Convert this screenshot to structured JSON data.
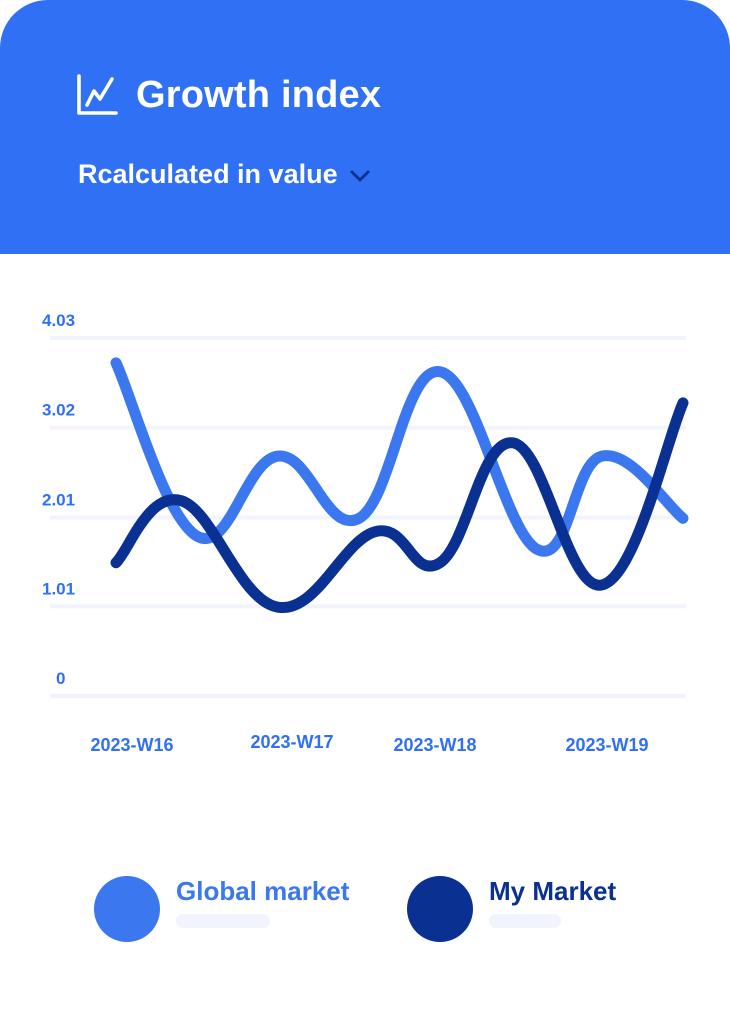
{
  "header": {
    "title": "Growth index",
    "title_icon": "line-chart-icon",
    "subtitle": "Rcalculated in value",
    "dropdown_icon": "chevron-down-icon"
  },
  "colors": {
    "header_bg": "#3070f5",
    "global_market": "#3b77ef",
    "my_market": "#0a3191",
    "axis_label": "#3070f5",
    "gridline": "#f2f4fd"
  },
  "chart_data": {
    "type": "line",
    "y_ticks": [
      "4.03",
      "3.02",
      "2.01",
      "1.01",
      "0"
    ],
    "ylim": [
      0,
      4.03
    ],
    "x_ticks": [
      "2023-W16",
      "2023-W17",
      "2023-W18",
      "2023-W19"
    ],
    "grid": true,
    "legend_position": "bottom",
    "series": [
      {
        "name": "Global market",
        "color": "#3b77ef",
        "points": [
          {
            "x": 0.0,
            "y": 3.75
          },
          {
            "x": 0.5,
            "y": 1.8
          },
          {
            "x": 1.0,
            "y": 2.7
          },
          {
            "x": 1.5,
            "y": 2.0
          },
          {
            "x": 2.0,
            "y": 3.65
          },
          {
            "x": 2.6,
            "y": 1.65
          },
          {
            "x": 3.0,
            "y": 2.7
          },
          {
            "x": 3.5,
            "y": 2.0
          }
        ]
      },
      {
        "name": "My Market",
        "color": "#0a3191",
        "points": [
          {
            "x": 0.0,
            "y": 1.5
          },
          {
            "x": 0.4,
            "y": 2.2
          },
          {
            "x": 1.0,
            "y": 1.0
          },
          {
            "x": 1.6,
            "y": 1.85
          },
          {
            "x": 2.0,
            "y": 1.5
          },
          {
            "x": 2.45,
            "y": 2.85
          },
          {
            "x": 3.0,
            "y": 1.25
          },
          {
            "x": 3.5,
            "y": 3.3
          }
        ]
      }
    ]
  },
  "legend": {
    "items": [
      {
        "label": "Global market",
        "color": "#3b77ef"
      },
      {
        "label": "My Market",
        "color": "#0a3191"
      }
    ]
  }
}
